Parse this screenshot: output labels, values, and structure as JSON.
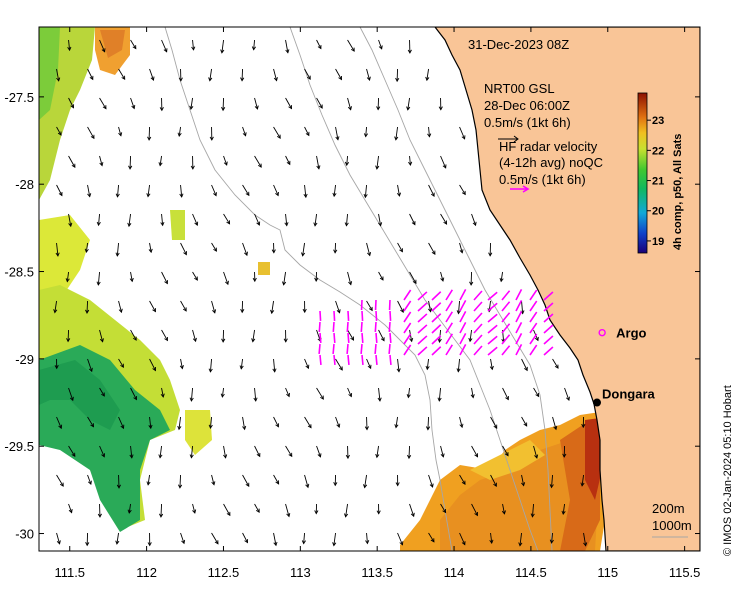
{
  "map": {
    "timestamp": "31-Dec-2023 08Z",
    "credit": "© IMOS 02-Jan-2024 05:10 Hobart",
    "lon_range": [
      111.3,
      115.6
    ],
    "lat_range": [
      -30.1,
      -27.1
    ],
    "x_ticks": [
      {
        "value": 111.5,
        "label": "111.5"
      },
      {
        "value": 112,
        "label": "112"
      },
      {
        "value": 112.5,
        "label": "112.5"
      },
      {
        "value": 113,
        "label": "113"
      },
      {
        "value": 113.5,
        "label": "113.5"
      },
      {
        "value": 114,
        "label": "114"
      },
      {
        "value": 114.5,
        "label": "114.5"
      },
      {
        "value": 115,
        "label": "115"
      },
      {
        "value": 115.5,
        "label": "115.5"
      }
    ],
    "y_ticks": [
      {
        "value": -27.5,
        "label": "-27.5"
      },
      {
        "value": -28,
        "label": "-28"
      },
      {
        "value": -28.5,
        "label": "-28.5"
      },
      {
        "value": -29,
        "label": "-29"
      },
      {
        "value": -29.5,
        "label": "-29.5"
      },
      {
        "value": -30,
        "label": "-30"
      }
    ]
  },
  "legend": {
    "gsl_title": "NRT00 GSL",
    "gsl_time": "28-Dec 06:00Z",
    "gsl_scale": "0.5m/s (1kt 6h)",
    "hf_title": "HF radar velocity",
    "hf_avg": "(4-12h avg) noQC",
    "hf_scale": "0.5m/s (1kt 6h)",
    "hf_color": "#ff00ff"
  },
  "colorbar": {
    "label": "4h comp, p50, All Sats",
    "min": 18.6,
    "max": 23.9,
    "ticks": [
      {
        "value": 19,
        "label": "19"
      },
      {
        "value": 20,
        "label": "20"
      },
      {
        "value": 21,
        "label": "21"
      },
      {
        "value": 22,
        "label": "22"
      },
      {
        "value": 23,
        "label": "23"
      }
    ]
  },
  "places": [
    {
      "name": "Argo",
      "lon": 114.97,
      "lat": -28.85,
      "marker": "argo-circle"
    },
    {
      "name": "Dongara",
      "lon": 114.93,
      "lat": -29.25,
      "marker": "dot"
    }
  ],
  "isobaths": [
    "200m",
    "1000m"
  ],
  "colors": {
    "land": "#f9c597",
    "coast": "#000000",
    "isobath": "#a6a6a6",
    "arrow": "#000000",
    "hf_arrow": "#ff00ff"
  },
  "icons": {
    "argo": "circle-icon",
    "town": "dot-icon"
  }
}
